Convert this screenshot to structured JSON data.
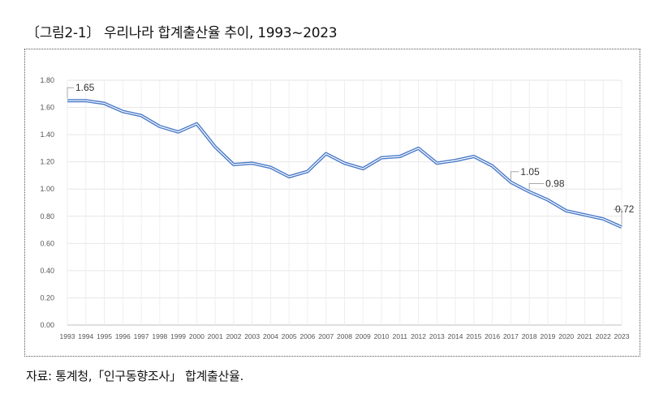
{
  "figure": {
    "title": "〔그림2-1〕 우리나라 합계출산율 추이, 1993~2023",
    "source": "자료: 통계청,「인구동향조사」 합계출산율."
  },
  "chart_data": {
    "type": "line",
    "title": "",
    "xlabel": "",
    "ylabel": "",
    "ylim": [
      0,
      1.8
    ],
    "grid": true,
    "legend": "none",
    "yticks": [
      "0.00",
      "0.20",
      "0.40",
      "0.60",
      "0.80",
      "1.00",
      "1.20",
      "1.40",
      "1.60",
      "1.80"
    ],
    "x": [
      1993,
      1994,
      1995,
      1996,
      1997,
      1998,
      1999,
      2000,
      2001,
      2002,
      2003,
      2004,
      2005,
      2006,
      2007,
      2008,
      2009,
      2010,
      2011,
      2012,
      2013,
      2014,
      2015,
      2016,
      2017,
      2018,
      2019,
      2020,
      2021,
      2022,
      2023
    ],
    "series": [
      {
        "color": "#4a7ac8",
        "values": [
          1.65,
          1.65,
          1.63,
          1.57,
          1.54,
          1.46,
          1.42,
          1.48,
          1.31,
          1.18,
          1.19,
          1.16,
          1.09,
          1.13,
          1.26,
          1.19,
          1.15,
          1.23,
          1.24,
          1.3,
          1.19,
          1.21,
          1.24,
          1.17,
          1.05,
          0.98,
          0.92,
          0.84,
          0.81,
          0.78,
          0.72
        ]
      }
    ],
    "data_labels": [
      {
        "index": 0,
        "text": "1.65"
      },
      {
        "index": 24,
        "text": "1.05"
      },
      {
        "index": 25,
        "text": "0.98"
      },
      {
        "index": 30,
        "text": "0.72"
      }
    ]
  }
}
